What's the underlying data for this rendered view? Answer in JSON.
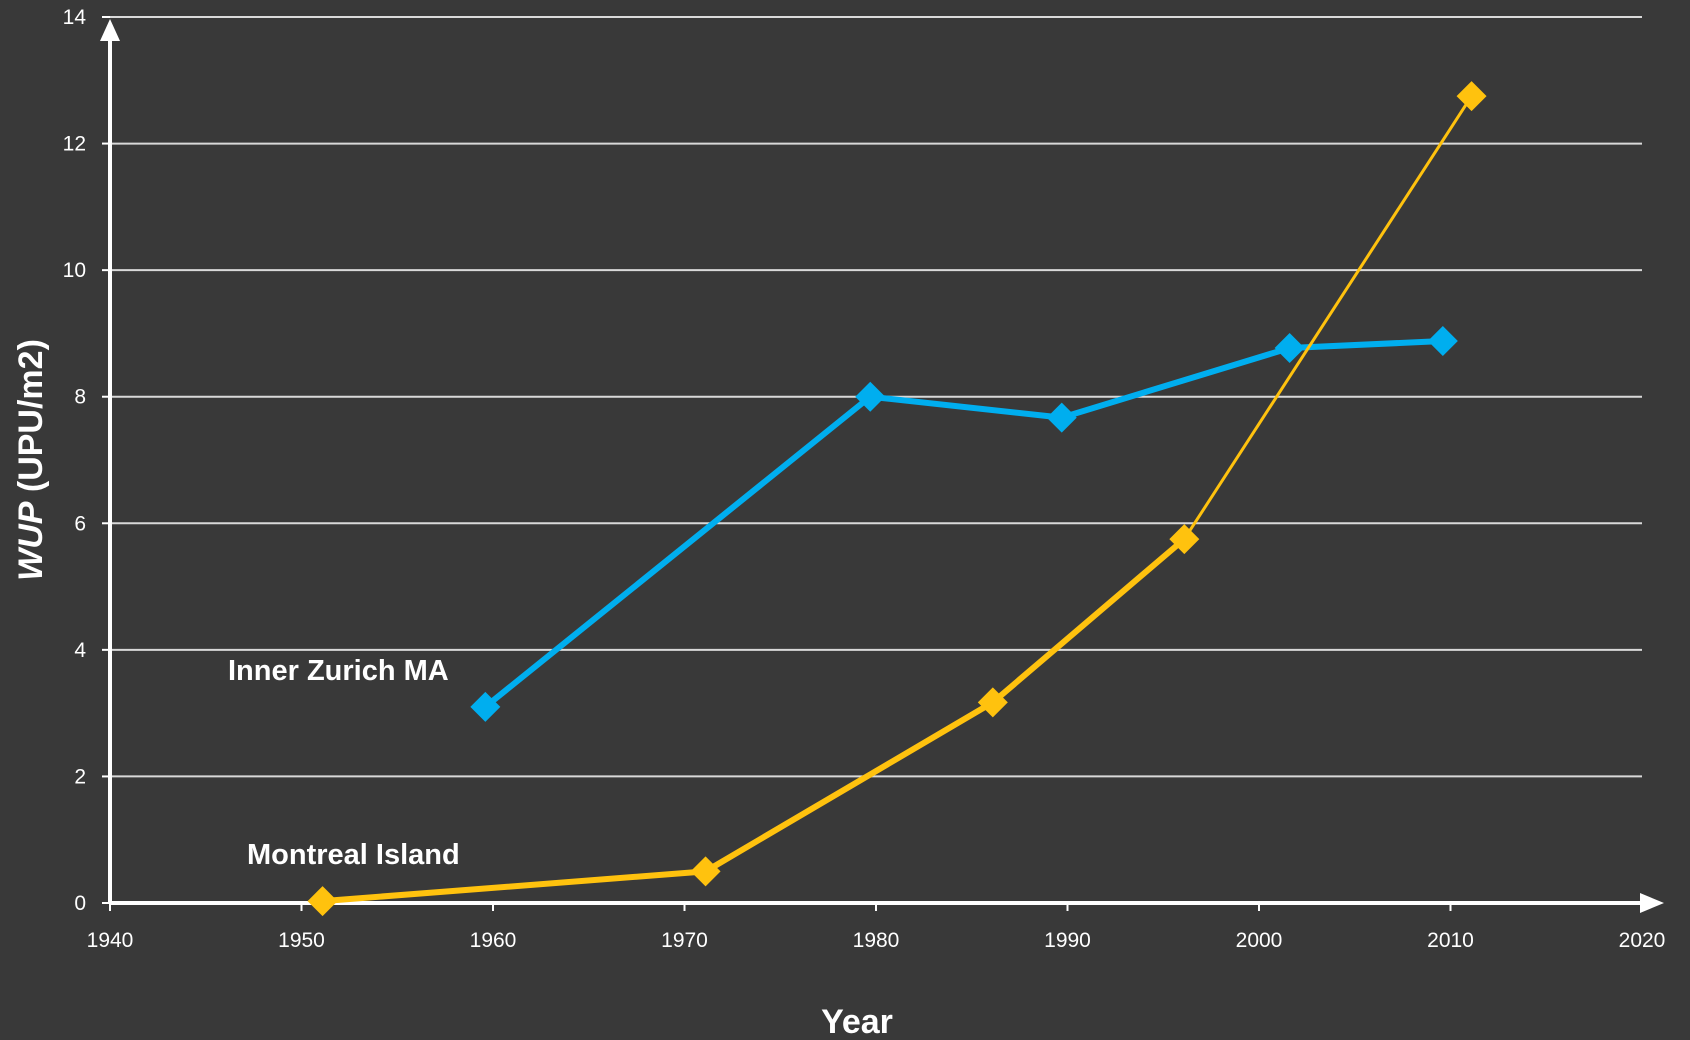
{
  "chart_data": {
    "type": "line",
    "xlabel": "Year",
    "ylabel_italic": "WUP",
    "ylabel_rest": " (UPU/m2)",
    "xlim": [
      1940,
      2020
    ],
    "ylim": [
      0,
      14
    ],
    "x_ticks": [
      1940,
      1950,
      1960,
      1970,
      1980,
      1990,
      2000,
      2010,
      2020
    ],
    "y_ticks": [
      0,
      2,
      4,
      6,
      8,
      10,
      12,
      14
    ],
    "grid": true,
    "legend": "none (series labelled inline)",
    "series": [
      {
        "name": "Inner Zurich MA",
        "color": "#00aeef",
        "x": [
          1959.6,
          1979.7,
          1989.7,
          2001.6,
          2009.6
        ],
        "y": [
          3.1,
          8.0,
          7.67,
          8.77,
          8.88
        ]
      },
      {
        "name": "Montreal Island",
        "color": "#ffc20e",
        "x": [
          1951.1,
          1971.1,
          1986.1,
          1996.1,
          2011.1
        ],
        "y": [
          0.03,
          0.5,
          3.17,
          5.75,
          12.75
        ]
      }
    ],
    "colors": {
      "background": "#393939",
      "axis": "#ffffff",
      "grid": "#d9d9d9",
      "text": "#ffffff"
    }
  }
}
